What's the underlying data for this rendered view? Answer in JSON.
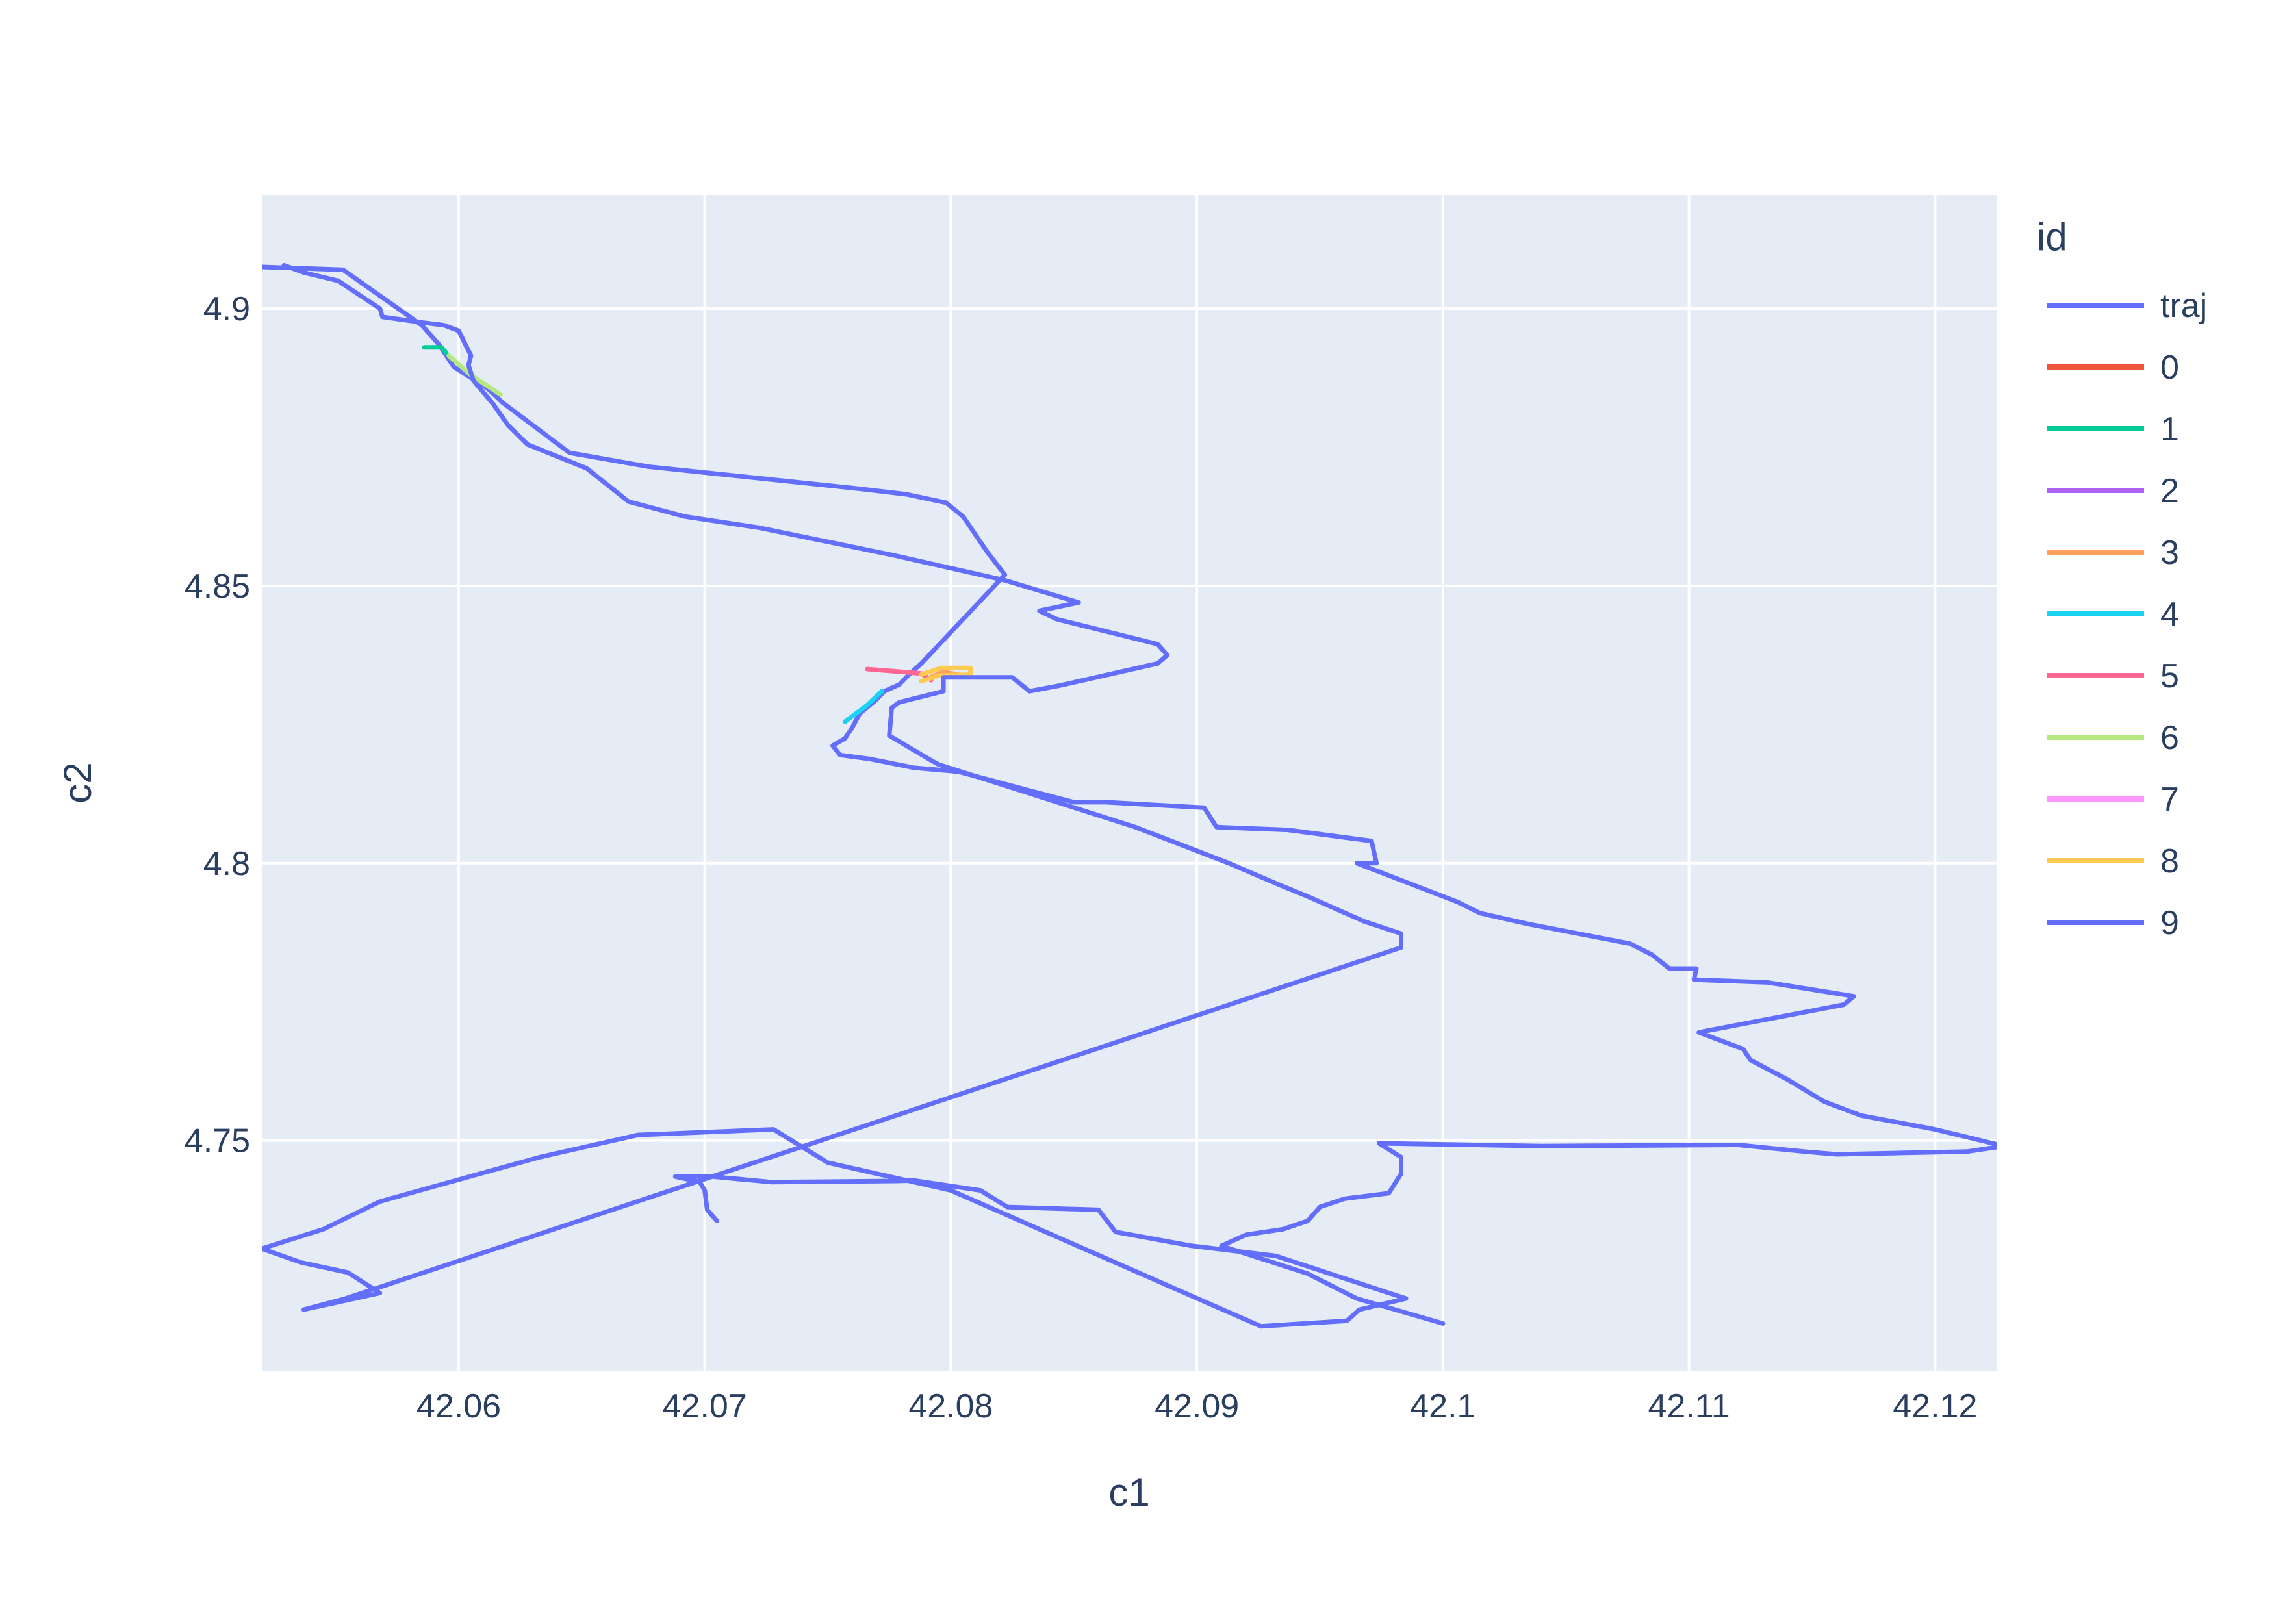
{
  "chart_data": {
    "type": "line",
    "title": "",
    "xlabel": "c1",
    "ylabel": "c2",
    "xlim": [
      42.052,
      42.1225
    ],
    "ylim": [
      4.7085,
      4.9205
    ],
    "x_ticks": [
      42.06,
      42.07,
      42.08,
      42.09,
      42.1,
      42.11,
      42.12
    ],
    "x_tick_labels": [
      "42.06",
      "42.07",
      "42.08",
      "42.09",
      "42.1",
      "42.11",
      "42.12"
    ],
    "y_ticks": [
      4.75,
      4.8,
      4.85,
      4.9
    ],
    "y_tick_labels": [
      "4.75",
      "4.8",
      "4.85",
      "4.9"
    ],
    "grid": true,
    "plot_background": "#e5ecf6",
    "legend": {
      "title": "id",
      "placement": "right"
    },
    "series": [
      {
        "name": "traj",
        "color": "#636efa",
        "points": [
          [
            42.1,
            4.717
          ],
          [
            42.0965,
            4.7215
          ],
          [
            42.0945,
            4.726
          ],
          [
            42.091,
            4.731
          ],
          [
            42.092,
            4.733
          ],
          [
            42.0935,
            4.734
          ],
          [
            42.0945,
            4.7355
          ],
          [
            42.095,
            4.738
          ],
          [
            42.096,
            4.7395
          ],
          [
            42.0978,
            4.7405
          ],
          [
            42.0983,
            4.744
          ],
          [
            42.0983,
            4.747
          ],
          [
            42.0974,
            4.7495
          ],
          [
            42.104,
            4.749
          ],
          [
            42.112,
            4.7492
          ],
          [
            42.1147,
            4.748
          ],
          [
            42.116,
            4.7475
          ],
          [
            42.1213,
            4.748
          ],
          [
            42.1228,
            4.749
          ],
          [
            42.12,
            4.752
          ],
          [
            42.117,
            4.7545
          ],
          [
            42.1155,
            4.757
          ],
          [
            42.114,
            4.761
          ],
          [
            42.1125,
            4.7645
          ],
          [
            42.1122,
            4.7665
          ],
          [
            42.1104,
            4.7695
          ],
          [
            42.1163,
            4.7745
          ],
          [
            42.1167,
            4.776
          ],
          [
            42.1132,
            4.7785
          ],
          [
            42.1102,
            4.779
          ],
          [
            42.1103,
            4.781
          ],
          [
            42.1092,
            4.781
          ],
          [
            42.1085,
            4.7835
          ],
          [
            42.1076,
            4.7855
          ],
          [
            42.1035,
            4.789
          ],
          [
            42.1015,
            4.791
          ],
          [
            42.1006,
            4.793
          ],
          [
            42.0965,
            4.8
          ],
          [
            42.0973,
            4.8
          ],
          [
            42.0971,
            4.804
          ],
          [
            42.0937,
            4.806
          ],
          [
            42.0908,
            4.8065
          ],
          [
            42.0903,
            4.81
          ],
          [
            42.0863,
            4.811
          ],
          [
            42.085,
            4.811
          ],
          [
            42.0803,
            4.8165
          ],
          [
            42.0785,
            4.8172
          ],
          [
            42.0767,
            4.8188
          ],
          [
            42.0755,
            4.8195
          ],
          [
            42.0752,
            4.8212
          ],
          [
            42.0757,
            4.8225
          ],
          [
            42.076,
            4.8245
          ],
          [
            42.0763,
            4.827
          ],
          [
            42.0769,
            4.8292
          ],
          [
            42.0773,
            4.831
          ],
          [
            42.0779,
            4.8322
          ],
          [
            42.0783,
            4.834
          ],
          [
            42.0788,
            4.836
          ],
          [
            42.0822,
            4.852
          ],
          [
            42.0815,
            4.856
          ],
          [
            42.0805,
            4.8625
          ],
          [
            42.0798,
            4.865
          ],
          [
            42.0782,
            4.8665
          ],
          [
            42.0763,
            4.8675
          ],
          [
            42.072,
            4.8695
          ],
          [
            42.0677,
            4.8715
          ],
          [
            42.0645,
            4.874
          ],
          [
            42.063,
            4.879
          ],
          [
            42.0618,
            4.883
          ],
          [
            42.0612,
            4.8855
          ],
          [
            42.0598,
            4.8895
          ],
          [
            42.0592,
            4.8935
          ],
          [
            42.0585,
            4.897
          ],
          [
            42.0553,
            4.907
          ],
          [
            42.052,
            4.9075
          ]
        ]
      },
      {
        "name": "0",
        "color": "#ef553b",
        "points": []
      },
      {
        "name": "1",
        "color": "#00cc96",
        "points": [
          [
            42.0586,
            4.893
          ],
          [
            42.0593,
            4.893
          ],
          [
            42.0595,
            4.892
          ]
        ]
      },
      {
        "name": "2",
        "color": "#ab63fa",
        "points": []
      },
      {
        "name": "3",
        "color": "#ffa15a",
        "points": [
          [
            42.079,
            4.8332
          ],
          [
            42.0797,
            4.8345
          ],
          [
            42.0805,
            4.8338
          ]
        ]
      },
      {
        "name": "4",
        "color": "#19d3f3",
        "points": [
          [
            42.0757,
            4.8255
          ],
          [
            42.0766,
            4.8285
          ],
          [
            42.0772,
            4.831
          ]
        ]
      },
      {
        "name": "5",
        "color": "#ff6692",
        "points": [
          [
            42.0766,
            4.835
          ],
          [
            42.0788,
            4.8342
          ],
          [
            42.0792,
            4.833
          ]
        ]
      },
      {
        "name": "6",
        "color": "#b6e880",
        "points": [
          [
            42.0596,
            4.8915
          ],
          [
            42.0605,
            4.888
          ],
          [
            42.0617,
            4.8845
          ]
        ]
      },
      {
        "name": "7",
        "color": "#ff97ff",
        "points": []
      },
      {
        "name": "8",
        "color": "#fecb52",
        "points": [
          [
            42.0788,
            4.834
          ],
          [
            42.0796,
            4.8352
          ],
          [
            42.0808,
            4.8352
          ],
          [
            42.0808,
            4.834
          ],
          [
            42.0795,
            4.8338
          ],
          [
            42.0788,
            4.8328
          ]
        ]
      },
      {
        "name": "9",
        "color": "#636efa",
        "points": [
          [
            42.0705,
            4.7355
          ],
          [
            42.0701,
            4.7375
          ],
          [
            42.07,
            4.741
          ],
          [
            42.0698,
            4.7425
          ],
          [
            42.0688,
            4.7435
          ],
          [
            42.0703,
            4.7435
          ],
          [
            42.0727,
            4.7425
          ],
          [
            42.0778,
            4.7427
          ],
          [
            42.0785,
            4.7428
          ],
          [
            42.0812,
            4.741
          ],
          [
            42.0823,
            4.738
          ],
          [
            42.086,
            4.7375
          ],
          [
            42.0867,
            4.7335
          ],
          [
            42.0898,
            4.731
          ],
          [
            42.0932,
            4.7292
          ],
          [
            42.0985,
            4.7215
          ],
          [
            42.0966,
            4.7195
          ],
          [
            42.0961,
            4.7175
          ],
          [
            42.0926,
            4.7165
          ],
          [
            42.08,
            4.741
          ],
          [
            42.075,
            4.746
          ],
          [
            42.0728,
            4.752
          ],
          [
            42.0673,
            4.751
          ],
          [
            42.0633,
            4.747
          ],
          [
            42.0568,
            4.739
          ],
          [
            42.0545,
            4.734
          ],
          [
            42.052,
            4.7305
          ],
          [
            42.0536,
            4.728
          ],
          [
            42.0555,
            4.7262
          ],
          [
            42.0568,
            4.7225
          ],
          [
            42.0537,
            4.7195
          ],
          [
            42.0554,
            4.7215
          ],
          [
            42.0983,
            4.7848
          ],
          [
            42.0983,
            4.7873
          ],
          [
            42.0968,
            4.7895
          ],
          [
            42.0945,
            4.794
          ],
          [
            42.0934,
            4.796
          ],
          [
            42.0913,
            4.8
          ],
          [
            42.0875,
            4.8065
          ],
          [
            42.0795,
            4.8178
          ],
          [
            42.0791,
            4.8188
          ],
          [
            42.0775,
            4.823
          ],
          [
            42.0776,
            4.828
          ],
          [
            42.0779,
            4.829
          ],
          [
            42.0797,
            4.831
          ],
          [
            42.0797,
            4.8335
          ],
          [
            42.0825,
            4.8335
          ],
          [
            42.0832,
            4.831
          ],
          [
            42.0844,
            4.832
          ],
          [
            42.0884,
            4.836
          ],
          [
            42.0888,
            4.8375
          ],
          [
            42.0884,
            4.8395
          ],
          [
            42.0843,
            4.844
          ],
          [
            42.0836,
            4.8455
          ],
          [
            42.0852,
            4.847
          ],
          [
            42.0822,
            4.851
          ],
          [
            42.0777,
            4.8555
          ],
          [
            42.0722,
            4.8605
          ],
          [
            42.0692,
            4.8625
          ],
          [
            42.0669,
            4.8652
          ],
          [
            42.0652,
            4.8712
          ],
          [
            42.0628,
            4.8755
          ],
          [
            42.062,
            4.879
          ],
          [
            42.0614,
            4.8828
          ],
          [
            42.0606,
            4.887
          ],
          [
            42.0604,
            4.8898
          ],
          [
            42.0605,
            4.8915
          ],
          [
            42.06,
            4.896
          ],
          [
            42.0594,
            4.897
          ],
          [
            42.0585,
            4.8975
          ],
          [
            42.0569,
            4.8985
          ],
          [
            42.0568,
            4.9
          ],
          [
            42.0551,
            4.905
          ],
          [
            42.0537,
            4.9065
          ],
          [
            42.0529,
            4.9078
          ]
        ]
      }
    ]
  }
}
